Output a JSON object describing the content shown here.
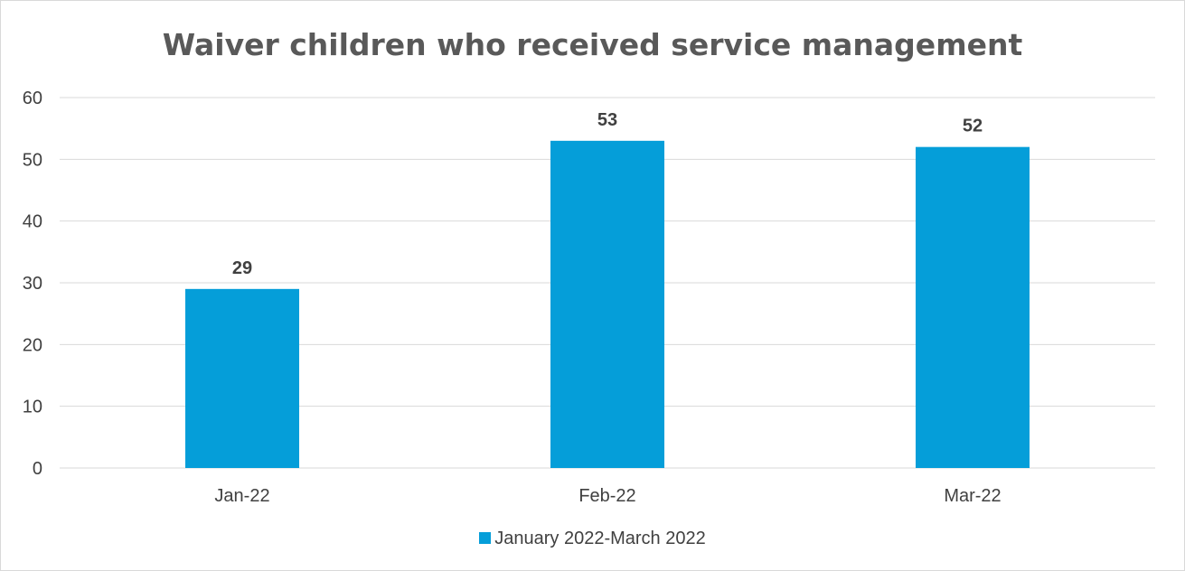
{
  "colors": {
    "bar": "#059ed9",
    "grid": "#d9d9d9",
    "tick_text": "#404040",
    "data_label": "#404040"
  },
  "chart_data": {
    "type": "bar",
    "title": "Waiver children who received service management",
    "xlabel": "",
    "ylabel": "",
    "categories": [
      "Jan-22",
      "Feb-22",
      "Mar-22"
    ],
    "series": [
      {
        "name": "January 2022-March 2022",
        "values": [
          29,
          53,
          52
        ]
      }
    ],
    "ylim": [
      0,
      60
    ],
    "yticks": [
      0,
      10,
      20,
      30,
      40,
      50,
      60
    ],
    "grid": true,
    "data_labels": true,
    "legend_position": "bottom"
  }
}
